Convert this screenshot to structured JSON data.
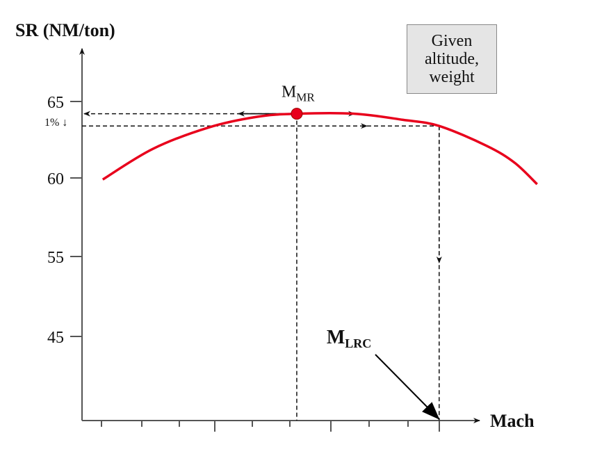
{
  "chart_data": {
    "type": "line",
    "ylabel": "SR (NM/ton)",
    "xlabel": "Mach",
    "y_ticks": [
      65,
      60,
      55,
      45
    ],
    "y_tick_labels": [
      "65",
      "60",
      "55",
      "45"
    ],
    "y_axis_broken_between": [
      45,
      55
    ],
    "x_tick_labels": [],
    "grid": false,
    "series": [
      {
        "color": "#e8001c",
        "points": [
          [
            0.55,
            59.9
          ],
          [
            1.88,
            61.9
          ],
          [
            3.36,
            63.3
          ],
          [
            4.65,
            64.0
          ],
          [
            5.7,
            64.2
          ],
          [
            7.23,
            64.2
          ],
          [
            8.52,
            63.8
          ],
          [
            9.48,
            63.4
          ],
          [
            10.74,
            62.1
          ],
          [
            11.48,
            61.0
          ],
          [
            12.08,
            59.6
          ]
        ]
      }
    ],
    "annotations": {
      "mmr": {
        "label": "M",
        "subscript": "MR",
        "x": 5.7,
        "y": 64.2
      },
      "mlrc": {
        "label": "M",
        "subscript": "LRC",
        "x": 9.48,
        "y": 63.4
      },
      "one_percent": "1% ↓",
      "condition_box": [
        "Given",
        "altitude,",
        "weight"
      ]
    }
  }
}
